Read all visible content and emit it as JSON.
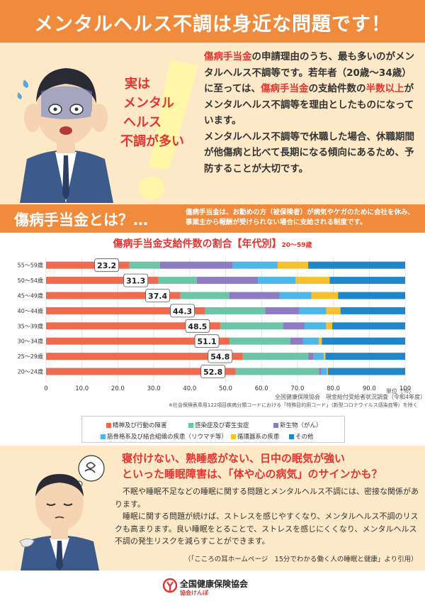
{
  "title": "メンタルヘルス不調は身近な問題です！",
  "callout": [
    "実は",
    "メンタル",
    "ヘルス",
    "不調が多い"
  ],
  "intro": {
    "p1": [
      {
        "t": "傷病手当金",
        "red": true
      },
      {
        "t": "の申請理由のうち、最も多いのがメンタルヘルス不調等です。若年者（20歳～34歳）に至っては、",
        "red": false
      },
      {
        "t": "傷病手当金",
        "red": true
      },
      {
        "t": "の支給件数の",
        "red": false
      },
      {
        "t": "半数以上",
        "red": true
      },
      {
        "t": "がメンタルヘルス不調等を理由としたものになっています。",
        "red": false
      }
    ],
    "p2": "メンタルヘルス不調等で休職した場合、休職期間が他傷病と比べて長期になる傾向にあるため、予防することが大切です。"
  },
  "what": {
    "title": "傷病手当金とは？…",
    "desc": "傷病手当金は、お勤めの方（被保険者）が病気やケガのために会社を休み、事業主から報酬が受けられない場合に支給される制度です。"
  },
  "chart_title": {
    "main": "傷病手当金支給件数の割合【年代別】",
    "sub": "20～59歳"
  },
  "chart_data": {
    "type": "bar",
    "orientation": "horizontal",
    "stacked": true,
    "title": "傷病手当金支給件数の割合【年代別】",
    "categories": [
      "55～59歳",
      "50～54歳",
      "45～49歳",
      "40～44歳",
      "35～39歳",
      "30～34歳",
      "25～29歳",
      "20～24歳"
    ],
    "series": [
      {
        "name": "精神及び行動の障害",
        "color": "#ef6a4f",
        "values": [
          23.2,
          31.3,
          37.4,
          44.3,
          48.5,
          51.1,
          54.8,
          52.8
        ]
      },
      {
        "name": "感染症及び寄生虫症",
        "color": "#6cc5a8",
        "values": [
          8.5,
          10.7,
          13.6,
          16.7,
          17.5,
          16.9,
          18.2,
          23.2
        ]
      },
      {
        "name": "新生物（がん）",
        "color": "#8e7cc3",
        "values": [
          20.3,
          17.0,
          14.0,
          9.5,
          6.0,
          3.5,
          1.5,
          0.7
        ]
      },
      {
        "name": "筋骨格系及び結合組織の疾患（リウマチ等）",
        "color": "#4fb6e8",
        "values": [
          12.5,
          10.5,
          8.9,
          7.5,
          6.0,
          4.5,
          2.8,
          1.5
        ]
      },
      {
        "name": "循環器系の疾患",
        "color": "#f5c12e",
        "values": [
          8.5,
          9.5,
          7.4,
          4.0,
          1.7,
          0.8,
          0.5,
          0.3
        ]
      },
      {
        "name": "その他",
        "color": "#1f86c9",
        "values": [
          27.0,
          21.0,
          18.7,
          18.0,
          20.3,
          23.2,
          22.2,
          21.5
        ]
      }
    ],
    "xlim": [
      0,
      100
    ],
    "xticks": [
      "0",
      "10.0",
      "20.0",
      "30.0",
      "40.0",
      "50.0",
      "60.0",
      "70.0",
      "80.0",
      "90.0",
      "100"
    ],
    "xlabel": "単位（％）",
    "data_labels": [
      "23.2",
      "31.3",
      "37.4",
      "44.3",
      "48.5",
      "51.1",
      "54.8",
      "52.8"
    ]
  },
  "source": "全国健康保険協会　現金給付受給者状況調査（令和4年度）",
  "note": "※社会保険表章用122項目疾病分類コードにおける「特殊目的用コード」（新型コロナウイルス感染症等）を除く",
  "legend": [
    {
      "label": "精神及び行動の障害",
      "color": "#ef6a4f"
    },
    {
      "label": "感染症及び寄生虫症",
      "color": "#6cc5a8"
    },
    {
      "label": "新生物（がん）",
      "color": "#8e7cc3"
    },
    {
      "label": "筋骨格系及び結合組織の疾患（リウマチ等）",
      "color": "#4fb6e8"
    },
    {
      "label": "循環器系の疾患",
      "color": "#f5c12e"
    },
    {
      "label": "その他",
      "color": "#1f86c9"
    }
  ],
  "sleep": {
    "head1": "寝付けない、熟睡感がない、日中の眠気が強い",
    "head2": "といった睡眠障害は、「体や心の病気」のサインかも？",
    "p1": "不眠や睡眠不足などの睡眠に関する問題とメンタルヘルス不調には、密接な関係があります。",
    "p2": "睡眠に関する問題が続けば、ストレスを感じやすくなり、メンタルヘルス不調のリスクも高まります。良い睡眠をとることで、ストレスを感じにくくなり、メンタルヘルス不調の発生リスクを減らすことができます。",
    "cite": "（「こころの耳ホームページ　15分でわかる働く人の睡眠と健康」より引用）"
  },
  "footer": {
    "name": "全国健康保険協会",
    "sub": "協会けんぽ"
  }
}
